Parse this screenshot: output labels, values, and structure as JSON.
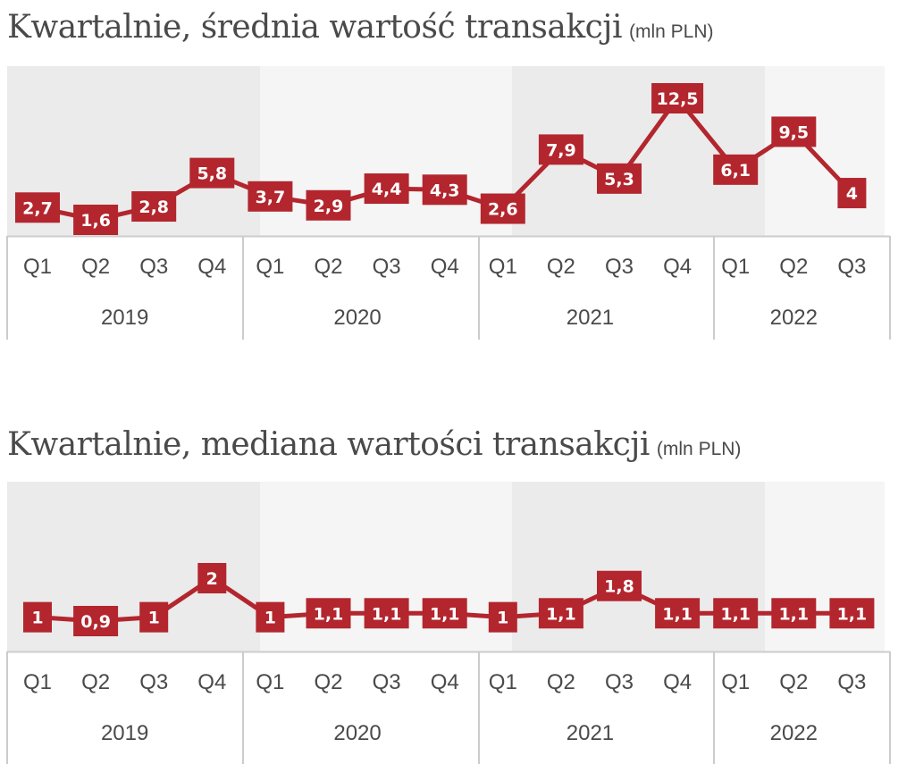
{
  "colors": {
    "line": "#b3262e",
    "band_dark": "#ebebeb",
    "band_light": "#f5f5f5",
    "axis": "#cccccc",
    "text": "#4a4a4a"
  },
  "chart_data": [
    {
      "type": "line",
      "title": "Kwartalnie, średnia wartość transakcji",
      "unit": "(mln PLN)",
      "categories": [
        "Q1",
        "Q2",
        "Q3",
        "Q4",
        "Q1",
        "Q2",
        "Q3",
        "Q4",
        "Q1",
        "Q2",
        "Q3",
        "Q4",
        "Q1",
        "Q2",
        "Q3"
      ],
      "years": [
        {
          "label": "2019",
          "quarters": 4
        },
        {
          "label": "2020",
          "quarters": 4
        },
        {
          "label": "2021",
          "quarters": 4
        },
        {
          "label": "2022",
          "quarters": 3
        }
      ],
      "values": [
        2.7,
        1.6,
        2.8,
        5.8,
        3.7,
        2.9,
        4.4,
        4.3,
        2.6,
        7.9,
        5.3,
        12.5,
        6.1,
        9.5,
        4
      ],
      "labels": [
        "2,7",
        "1,6",
        "2,8",
        "5,8",
        "3,7",
        "2,9",
        "4,4",
        "4,3",
        "2,6",
        "7,9",
        "5,3",
        "12,5",
        "6,1",
        "9,5",
        "4"
      ],
      "ylim": [
        1.6,
        12.5
      ]
    },
    {
      "type": "line",
      "title": "Kwartalnie, mediana wartości transakcji",
      "unit": "(mln PLN)",
      "categories": [
        "Q1",
        "Q2",
        "Q3",
        "Q4",
        "Q1",
        "Q2",
        "Q3",
        "Q4",
        "Q1",
        "Q2",
        "Q3",
        "Q4",
        "Q1",
        "Q2",
        "Q3"
      ],
      "years": [
        {
          "label": "2019",
          "quarters": 4
        },
        {
          "label": "2020",
          "quarters": 4
        },
        {
          "label": "2021",
          "quarters": 4
        },
        {
          "label": "2022",
          "quarters": 3
        }
      ],
      "values": [
        1,
        0.9,
        1,
        2,
        1,
        1.1,
        1.1,
        1.1,
        1,
        1.1,
        1.8,
        1.1,
        1.1,
        1.1,
        1.1
      ],
      "labels": [
        "1",
        "0,9",
        "1",
        "2",
        "1",
        "1,1",
        "1,1",
        "1,1",
        "1",
        "1,1",
        "1,8",
        "1,1",
        "1,1",
        "1,1",
        "1,1"
      ],
      "ylim": [
        0.9,
        2
      ]
    }
  ]
}
